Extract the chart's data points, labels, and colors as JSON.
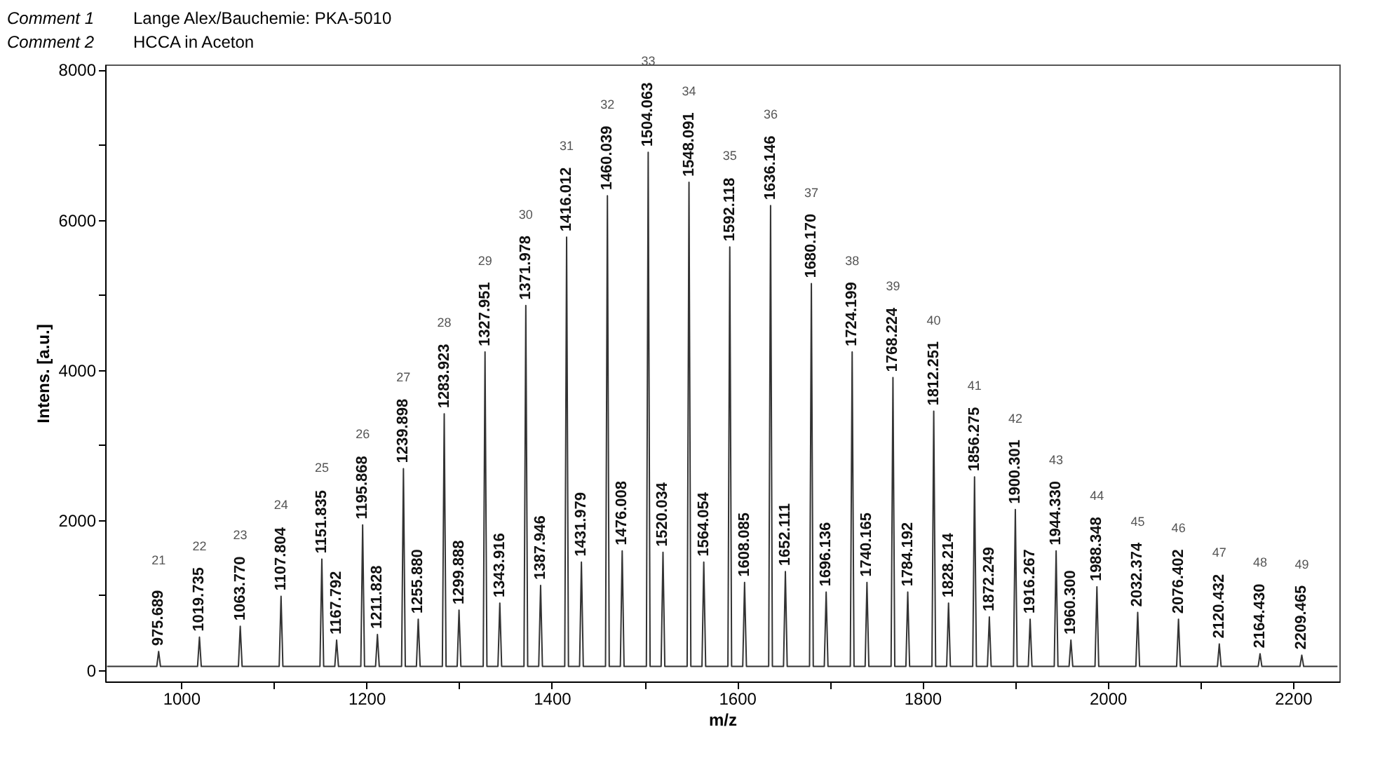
{
  "chart_data": {
    "type": "line",
    "xlabel": "m/z",
    "ylabel": "Intens. [a.u.]",
    "xlim": [
      918,
      2250
    ],
    "ylim": [
      -150,
      8070
    ],
    "xticks": [
      1000,
      {
        "value": 1100,
        "label": null
      },
      1200,
      {
        "value": 1300,
        "label": null
      },
      1400,
      {
        "value": 1500,
        "label": null
      },
      1600,
      {
        "value": 1700,
        "label": null
      },
      1800,
      {
        "value": 1900,
        "label": null
      },
      2000,
      {
        "value": 2100,
        "label": null
      },
      2200
    ],
    "yticks": [
      0,
      {
        "value": 1000,
        "label": null
      },
      2000,
      {
        "value": 3000,
        "label": null
      },
      4000,
      {
        "value": 5000,
        "label": null
      },
      6000,
      {
        "value": 7000,
        "label": null
      },
      8000
    ],
    "series": [
      {
        "color": "#333333",
        "x": [
          920,
          973.7,
          975.689,
          977.7,
          1017.7,
          1019.735,
          1021.7,
          1061.8,
          1063.77,
          1065.8,
          1105.8,
          1107.804,
          1109.8,
          1149.8,
          1151.835,
          1153.8,
          1165.8,
          1167.792,
          1169.8,
          1193.9,
          1195.868,
          1197.9,
          1209.8,
          1211.828,
          1213.8,
          1237.9,
          1239.898,
          1241.9,
          1253.9,
          1255.88,
          1257.9,
          1281.9,
          1283.923,
          1285.9,
          1297.9,
          1299.888,
          1301.9,
          1326.0,
          1327.951,
          1330.0,
          1341.9,
          1343.916,
          1345.9,
          1370.0,
          1371.978,
          1374.0,
          1385.9,
          1387.946,
          1389.9,
          1414.0,
          1416.012,
          1418.0,
          1430.0,
          1431.979,
          1434.0,
          1458.0,
          1460.039,
          1462.0,
          1474.0,
          1476.008,
          1478.0,
          1502.1,
          1504.063,
          1506.1,
          1518.0,
          1520.034,
          1522.0,
          1546.1,
          1548.091,
          1550.1,
          1562.1,
          1564.054,
          1566.1,
          1590.1,
          1592.118,
          1594.1,
          1606.1,
          1608.085,
          1610.1,
          1634.1,
          1636.146,
          1638.1,
          1650.1,
          1652.111,
          1654.1,
          1678.2,
          1680.17,
          1682.2,
          1694.1,
          1696.136,
          1698.1,
          1722.2,
          1724.199,
          1726.2,
          1738.2,
          1740.165,
          1742.2,
          1766.2,
          1768.224,
          1770.2,
          1782.2,
          1784.192,
          1786.2,
          1810.3,
          1812.251,
          1814.3,
          1826.2,
          1828.214,
          1830.2,
          1854.3,
          1856.275,
          1858.3,
          1870.2,
          1872.249,
          1874.2,
          1898.3,
          1900.301,
          1902.3,
          1914.3,
          1916.267,
          1918.3,
          1942.3,
          1944.33,
          1946.3,
          1958.3,
          1960.3,
          1962.3,
          1986.3,
          1988.348,
          1990.3,
          2030.4,
          2032.374,
          2034.4,
          2074.4,
          2076.402,
          2078.4,
          2118.4,
          2120.432,
          2122.4,
          2162.4,
          2164.43,
          2166.4,
          2207.5,
          2209.465,
          2211.5,
          2248
        ],
        "values": [
          50,
          50,
          250,
          50,
          50,
          440,
          50,
          50,
          585,
          50,
          50,
          985,
          50,
          50,
          1480,
          50,
          50,
          400,
          50,
          50,
          1935,
          50,
          50,
          475,
          50,
          50,
          2685,
          50,
          50,
          680,
          50,
          50,
          3415,
          50,
          50,
          800,
          50,
          50,
          4240,
          50,
          50,
          895,
          50,
          50,
          4860,
          50,
          50,
          1130,
          50,
          50,
          5770,
          50,
          50,
          1440,
          50,
          50,
          6320,
          50,
          50,
          1590,
          50,
          50,
          6900,
          50,
          50,
          1570,
          50,
          50,
          6500,
          50,
          50,
          1440,
          50,
          50,
          5640,
          50,
          50,
          1170,
          50,
          50,
          6190,
          50,
          50,
          1315,
          50,
          50,
          5150,
          50,
          50,
          1040,
          50,
          50,
          4240,
          50,
          50,
          1170,
          50,
          50,
          3900,
          50,
          50,
          1040,
          50,
          50,
          3450,
          50,
          50,
          895,
          50,
          50,
          2575,
          50,
          50,
          710,
          50,
          50,
          2140,
          50,
          50,
          680,
          50,
          50,
          1590,
          50,
          50,
          400,
          50,
          50,
          1110,
          50,
          50,
          770,
          50,
          50,
          680,
          50,
          50,
          350,
          50,
          50,
          220,
          50,
          50,
          200,
          50,
          50
        ]
      }
    ],
    "annotations": [
      "Comment 1",
      "Lange Alex/Bauchemie: PKA-5010",
      "Comment 2",
      "HCCA in Aceton",
      {
        "text": "975.689",
        "x": 975.689,
        "y": 250
      },
      {
        "text": "1019.735",
        "x": 1019.735,
        "y": 440
      },
      {
        "text": "1063.770",
        "x": 1063.77,
        "y": 585
      },
      {
        "text": "1107.804",
        "x": 1107.804,
        "y": 985
      },
      {
        "text": "1151.835",
        "x": 1151.835,
        "y": 1480
      },
      {
        "text": "1167.792",
        "x": 1167.792,
        "y": 400
      },
      {
        "text": "1195.868",
        "x": 1195.868,
        "y": 1935
      },
      {
        "text": "1211.828",
        "x": 1211.828,
        "y": 475
      },
      {
        "text": "1239.898",
        "x": 1239.898,
        "y": 2685
      },
      {
        "text": "1255.880",
        "x": 1255.88,
        "y": 680
      },
      {
        "text": "1283.923",
        "x": 1283.923,
        "y": 3415
      },
      {
        "text": "1299.888",
        "x": 1299.888,
        "y": 800
      },
      {
        "text": "1327.951",
        "x": 1327.951,
        "y": 4240
      },
      {
        "text": "1343.916",
        "x": 1343.916,
        "y": 895
      },
      {
        "text": "1371.978",
        "x": 1371.978,
        "y": 4860
      },
      {
        "text": "1387.946",
        "x": 1387.946,
        "y": 1130
      },
      {
        "text": "1416.012",
        "x": 1416.012,
        "y": 5770
      },
      {
        "text": "1431.979",
        "x": 1431.979,
        "y": 1440
      },
      {
        "text": "1460.039",
        "x": 1460.039,
        "y": 6320
      },
      {
        "text": "1476.008",
        "x": 1476.008,
        "y": 1590
      },
      {
        "text": "1504.063",
        "x": 1504.063,
        "y": 6900
      },
      {
        "text": "1520.034",
        "x": 1520.034,
        "y": 1570
      },
      {
        "text": "1548.091",
        "x": 1548.091,
        "y": 6500
      },
      {
        "text": "1564.054",
        "x": 1564.054,
        "y": 1440
      },
      {
        "text": "1592.118",
        "x": 1592.118,
        "y": 5640
      },
      {
        "text": "1608.085",
        "x": 1608.085,
        "y": 1170
      },
      {
        "text": "1636.146",
        "x": 1636.146,
        "y": 6190
      },
      {
        "text": "1652.111",
        "x": 1652.111,
        "y": 1315
      },
      {
        "text": "1680.170",
        "x": 1680.17,
        "y": 5150
      },
      {
        "text": "1696.136",
        "x": 1696.136,
        "y": 1040
      },
      {
        "text": "1724.199",
        "x": 1724.199,
        "y": 4240
      },
      {
        "text": "1740.165",
        "x": 1740.165,
        "y": 1170
      },
      {
        "text": "1768.224",
        "x": 1768.224,
        "y": 3900
      },
      {
        "text": "1784.192",
        "x": 1784.192,
        "y": 1040
      },
      {
        "text": "1812.251",
        "x": 1812.251,
        "y": 3450
      },
      {
        "text": "1828.214",
        "x": 1828.214,
        "y": 895
      },
      {
        "text": "1856.275",
        "x": 1856.275,
        "y": 2575
      },
      {
        "text": "1872.249",
        "x": 1872.249,
        "y": 710
      },
      {
        "text": "1900.301",
        "x": 1900.301,
        "y": 2140
      },
      {
        "text": "1916.267",
        "x": 1916.267,
        "y": 680
      },
      {
        "text": "1944.330",
        "x": 1944.33,
        "y": 1590
      },
      {
        "text": "1960.300",
        "x": 1960.3,
        "y": 400
      },
      {
        "text": "1988.348",
        "x": 1988.348,
        "y": 1110
      },
      {
        "text": "2032.374",
        "x": 2032.374,
        "y": 770
      },
      {
        "text": "2076.402",
        "x": 2076.402,
        "y": 680
      },
      {
        "text": "2120.432",
        "x": 2120.432,
        "y": 350
      },
      {
        "text": "2164.430",
        "x": 2164.43,
        "y": 220
      },
      {
        "text": "2209.465",
        "x": 2209.465,
        "y": 200
      },
      "21",
      "22",
      "23",
      "24",
      "25",
      "26",
      "27",
      "28",
      "29",
      "30",
      "31",
      "32",
      "33",
      "34",
      "35",
      "36",
      "37",
      "38",
      "39",
      "40",
      "41",
      "42",
      "43",
      "44",
      "45",
      "46",
      "47",
      "48",
      "49"
    ]
  }
}
